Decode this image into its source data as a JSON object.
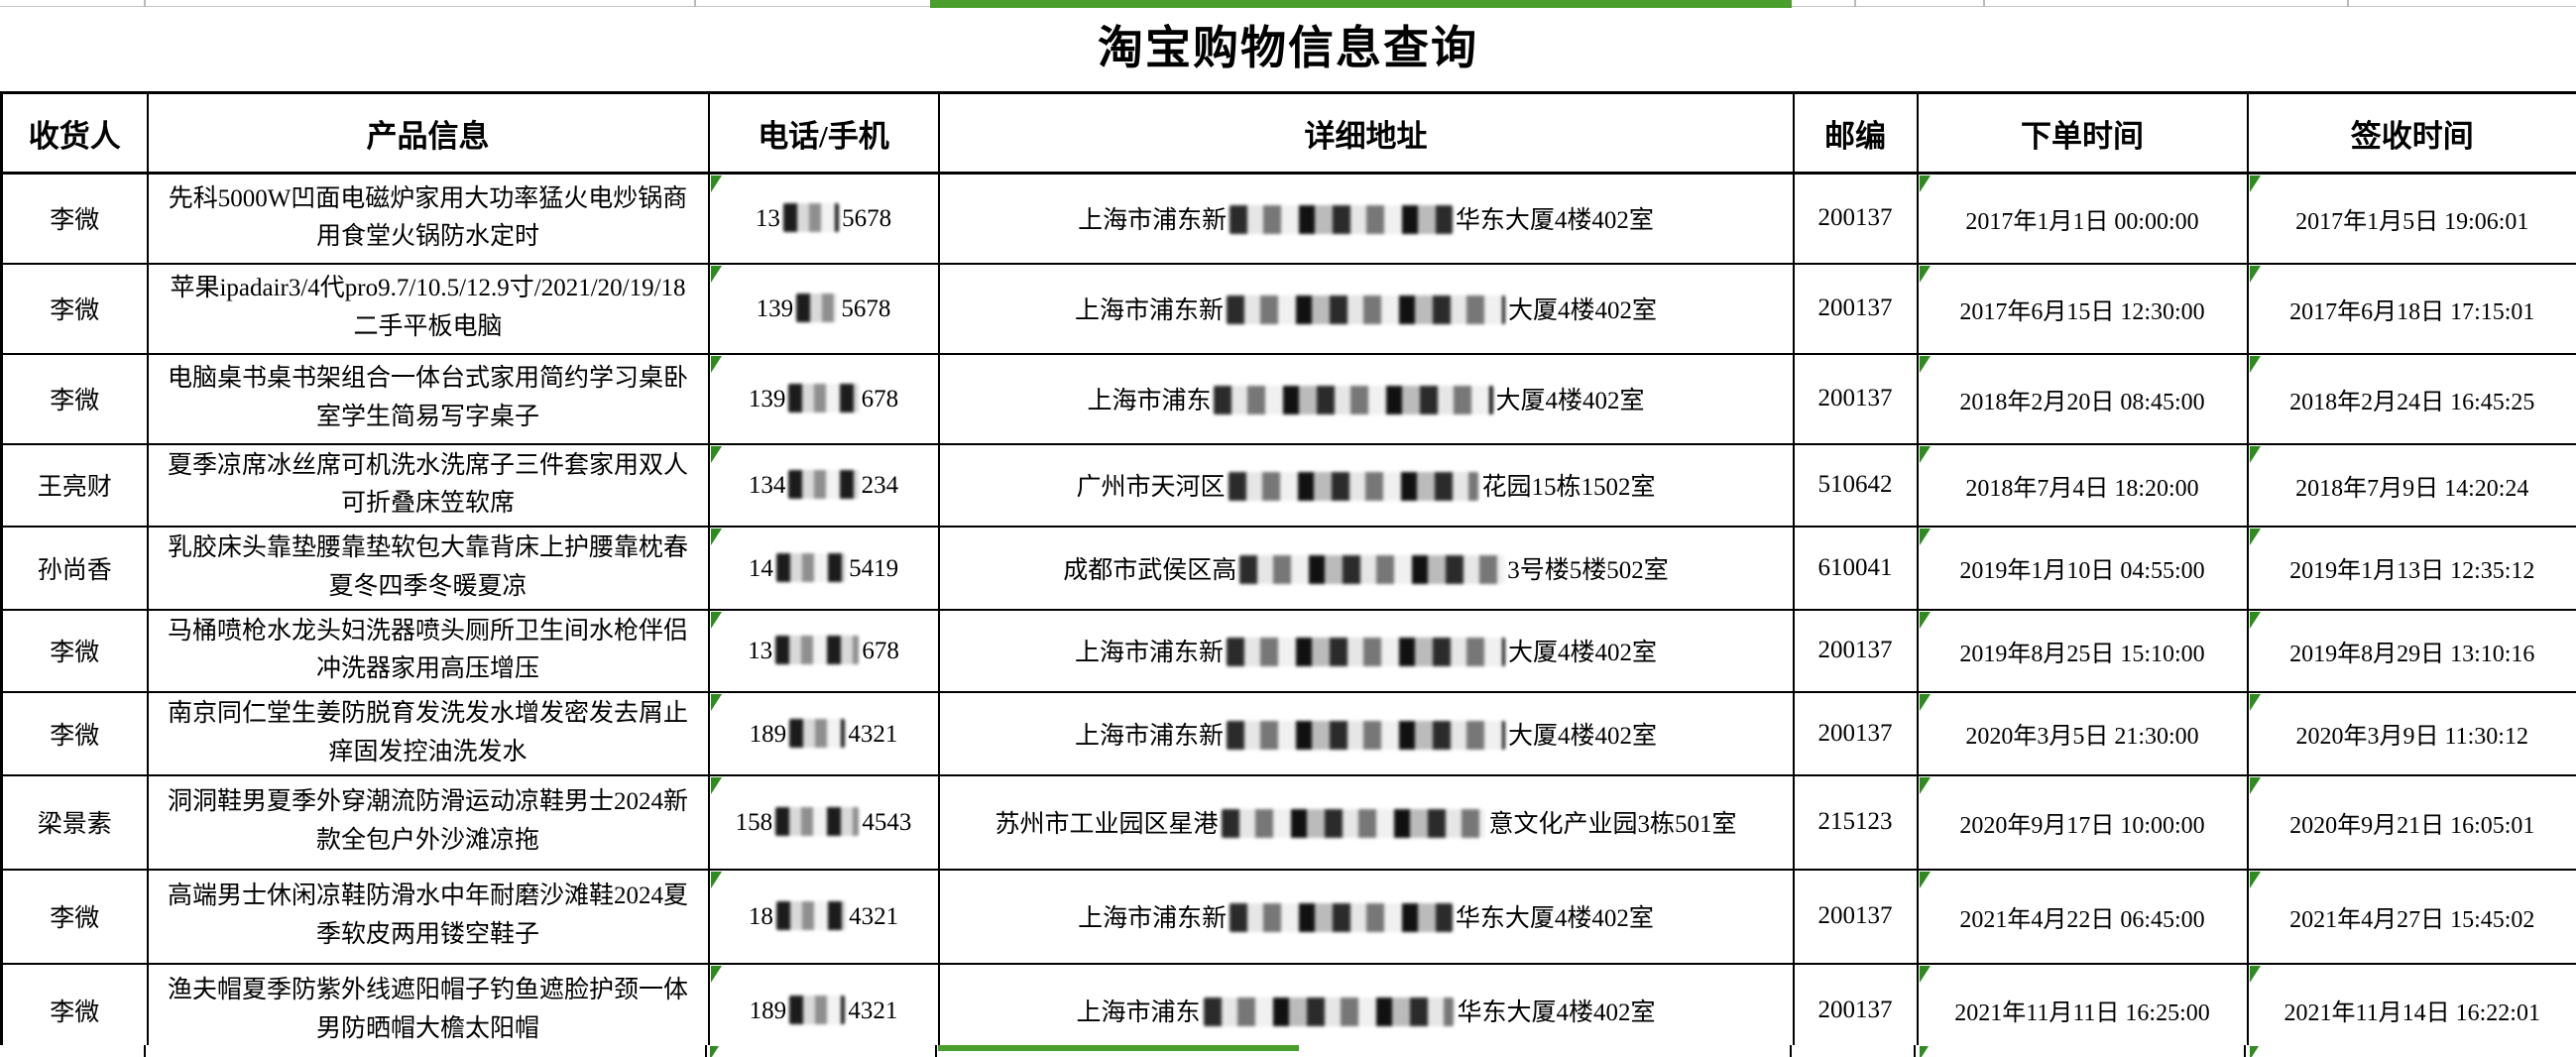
{
  "title": "淘宝购物信息查询",
  "columns": [
    "收货人",
    "产品信息",
    "电话/手机",
    "详细地址",
    "邮编",
    "下单时间",
    "签收时间"
  ],
  "colors": {
    "selection_green": "#4a9e2c",
    "flag_green": "#2e8b1e",
    "grid_black": "#000000"
  },
  "rows": [
    {
      "consignee": "李微",
      "product": "先科5000W凹面电磁炉家用大功率猛火电炒锅商用食堂火锅防水定时",
      "phone": {
        "pre": "13",
        "mask": "████",
        "suf": "5678"
      },
      "address": {
        "pre": "上海市浦东新",
        "mask": "████████████████",
        "suf": "华东大厦4楼402室"
      },
      "zip": "200137",
      "order_time": "2017年1月1日 00:00:00",
      "sign_time": "2017年1月5日 19:06:01"
    },
    {
      "consignee": "李微",
      "product": "苹果ipadair3/4代pro9.7/10.5/12.9寸/2021/20/19/18二手平板电脑",
      "phone": {
        "pre": "139",
        "mask": "███",
        "suf": "5678"
      },
      "address": {
        "pre": "上海市浦东新",
        "mask": "████████████████████",
        "suf": "大厦4楼402室"
      },
      "zip": "200137",
      "order_time": "2017年6月15日 12:30:00",
      "sign_time": "2017年6月18日 17:15:01"
    },
    {
      "consignee": "李微",
      "product": "电脑桌书桌书架组合一体台式家用简约学习桌卧室学生简易写字桌子",
      "phone": {
        "pre": "139",
        "mask": "█████",
        "suf": "678"
      },
      "address": {
        "pre": "上海市浦东",
        "mask": "████████████████████",
        "suf": "大厦4楼402室"
      },
      "zip": "200137",
      "order_time": "2018年2月20日 08:45:00",
      "sign_time": "2018年2月24日 16:45:25"
    },
    {
      "consignee": "王亮财",
      "product": "夏季凉席冰丝席可机洗水洗席子三件套家用双人可折叠床笠软席",
      "phone": {
        "pre": "134",
        "mask": "█████",
        "suf": "234"
      },
      "address": {
        "pre": "广州市天河区",
        "mask": "██████████████████",
        "suf": "花园15栋1502室"
      },
      "zip": "510642",
      "order_time": "2018年7月4日 18:20:00",
      "sign_time": "2018年7月9日 14:20:24"
    },
    {
      "consignee": "孙尚香",
      "product": "乳胶床头靠垫腰靠垫软包大靠背床上护腰靠枕春夏冬四季冬暖夏凉",
      "phone": {
        "pre": "14",
        "mask": "█████",
        "suf": "5419"
      },
      "address": {
        "pre": "成都市武侯区高",
        "mask": "███████████████████",
        "suf": "3号楼5楼502室"
      },
      "zip": "610041",
      "order_time": "2019年1月10日 04:55:00",
      "sign_time": "2019年1月13日 12:35:12"
    },
    {
      "consignee": "李微",
      "product": "马桶喷枪水龙头妇洗器喷头厕所卫生间水枪伴侣冲洗器家用高压增压",
      "phone": {
        "pre": "13",
        "mask": "██████",
        "suf": "678"
      },
      "address": {
        "pre": "上海市浦东新",
        "mask": "████████████████████",
        "suf": "大厦4楼402室"
      },
      "zip": "200137",
      "order_time": "2019年8月25日 15:10:00",
      "sign_time": "2019年8月29日 13:10:16"
    },
    {
      "consignee": "李微",
      "product": "南京同仁堂生姜防脱育发洗发水增发密发去屑止痒固发控油洗发水",
      "phone": {
        "pre": "189",
        "mask": "████",
        "suf": "4321"
      },
      "address": {
        "pre": "上海市浦东新",
        "mask": "████████████████████",
        "suf": "大厦4楼402室"
      },
      "zip": "200137",
      "order_time": "2020年3月5日 21:30:00",
      "sign_time": "2020年3月9日 11:30:12"
    },
    {
      "consignee": "梁景素",
      "product": "洞洞鞋男夏季外穿潮流防滑运动凉鞋男士2024新款全包户外沙滩凉拖",
      "phone": {
        "pre": "158",
        "mask": "██████",
        "suf": "4543"
      },
      "address": {
        "pre": "苏州市工业园区星港",
        "mask": "███████████████████",
        "suf": "意文化产业园3栋501室"
      },
      "zip": "215123",
      "order_time": "2020年9月17日 10:00:00",
      "sign_time": "2020年9月21日 16:05:01"
    },
    {
      "consignee": "李微",
      "product": "高端男士休闲凉鞋防滑水中年耐磨沙滩鞋2024夏季软皮两用镂空鞋子",
      "phone": {
        "pre": "18",
        "mask": "█████",
        "suf": "4321"
      },
      "address": {
        "pre": "上海市浦东新",
        "mask": "████████████████",
        "suf": "华东大厦4楼402室"
      },
      "zip": "200137",
      "order_time": "2021年4月22日 06:45:00",
      "sign_time": "2021年4月27日 15:45:02"
    },
    {
      "consignee": "李微",
      "product": "渔夫帽夏季防紫外线遮阳帽子钓鱼遮脸护颈一体男防晒帽大檐太阳帽",
      "phone": {
        "pre": "189",
        "mask": "████",
        "suf": "4321"
      },
      "address": {
        "pre": "上海市浦东",
        "mask": "██████████████████",
        "suf": "华东大厦4楼402室"
      },
      "zip": "200137",
      "order_time": "2021年11月11日 16:25:00",
      "sign_time": "2021年11月14日 16:22:01"
    }
  ]
}
